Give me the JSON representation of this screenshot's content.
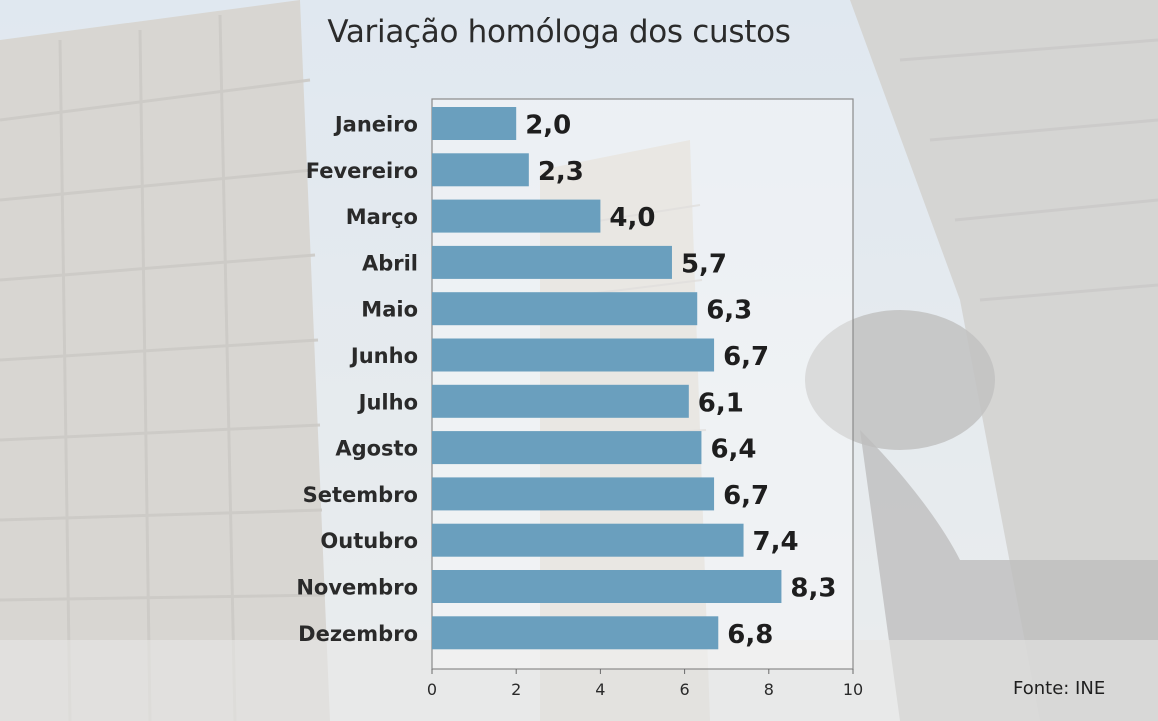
{
  "chart_data": {
    "type": "bar",
    "orientation": "horizontal",
    "title": "Variação homóloga dos custos",
    "categories": [
      "Janeiro",
      "Fevereiro",
      "Março",
      "Abril",
      "Maio",
      "Junho",
      "Julho",
      "Agosto",
      "Setembro",
      "Outubro",
      "Novembro",
      "Dezembro"
    ],
    "values": [
      2.0,
      2.3,
      4.0,
      5.7,
      6.3,
      6.7,
      6.1,
      6.4,
      6.7,
      7.4,
      8.3,
      6.8
    ],
    "value_labels": [
      "2,0",
      "2,3",
      "4,0",
      "5,7",
      "6,3",
      "6,7",
      "6,1",
      "6,4",
      "6,7",
      "7,4",
      "8,3",
      "6,8"
    ],
    "xlim": [
      0,
      10
    ],
    "x_ticks": [
      0,
      2,
      4,
      6,
      8,
      10
    ],
    "x_tick_labels": [
      "0",
      "2",
      "4",
      "6",
      "8",
      "10"
    ],
    "xlabel": "",
    "ylabel": "",
    "grid": false,
    "bar_color": "#6a9fbe",
    "source": "Fonte: INE"
  }
}
